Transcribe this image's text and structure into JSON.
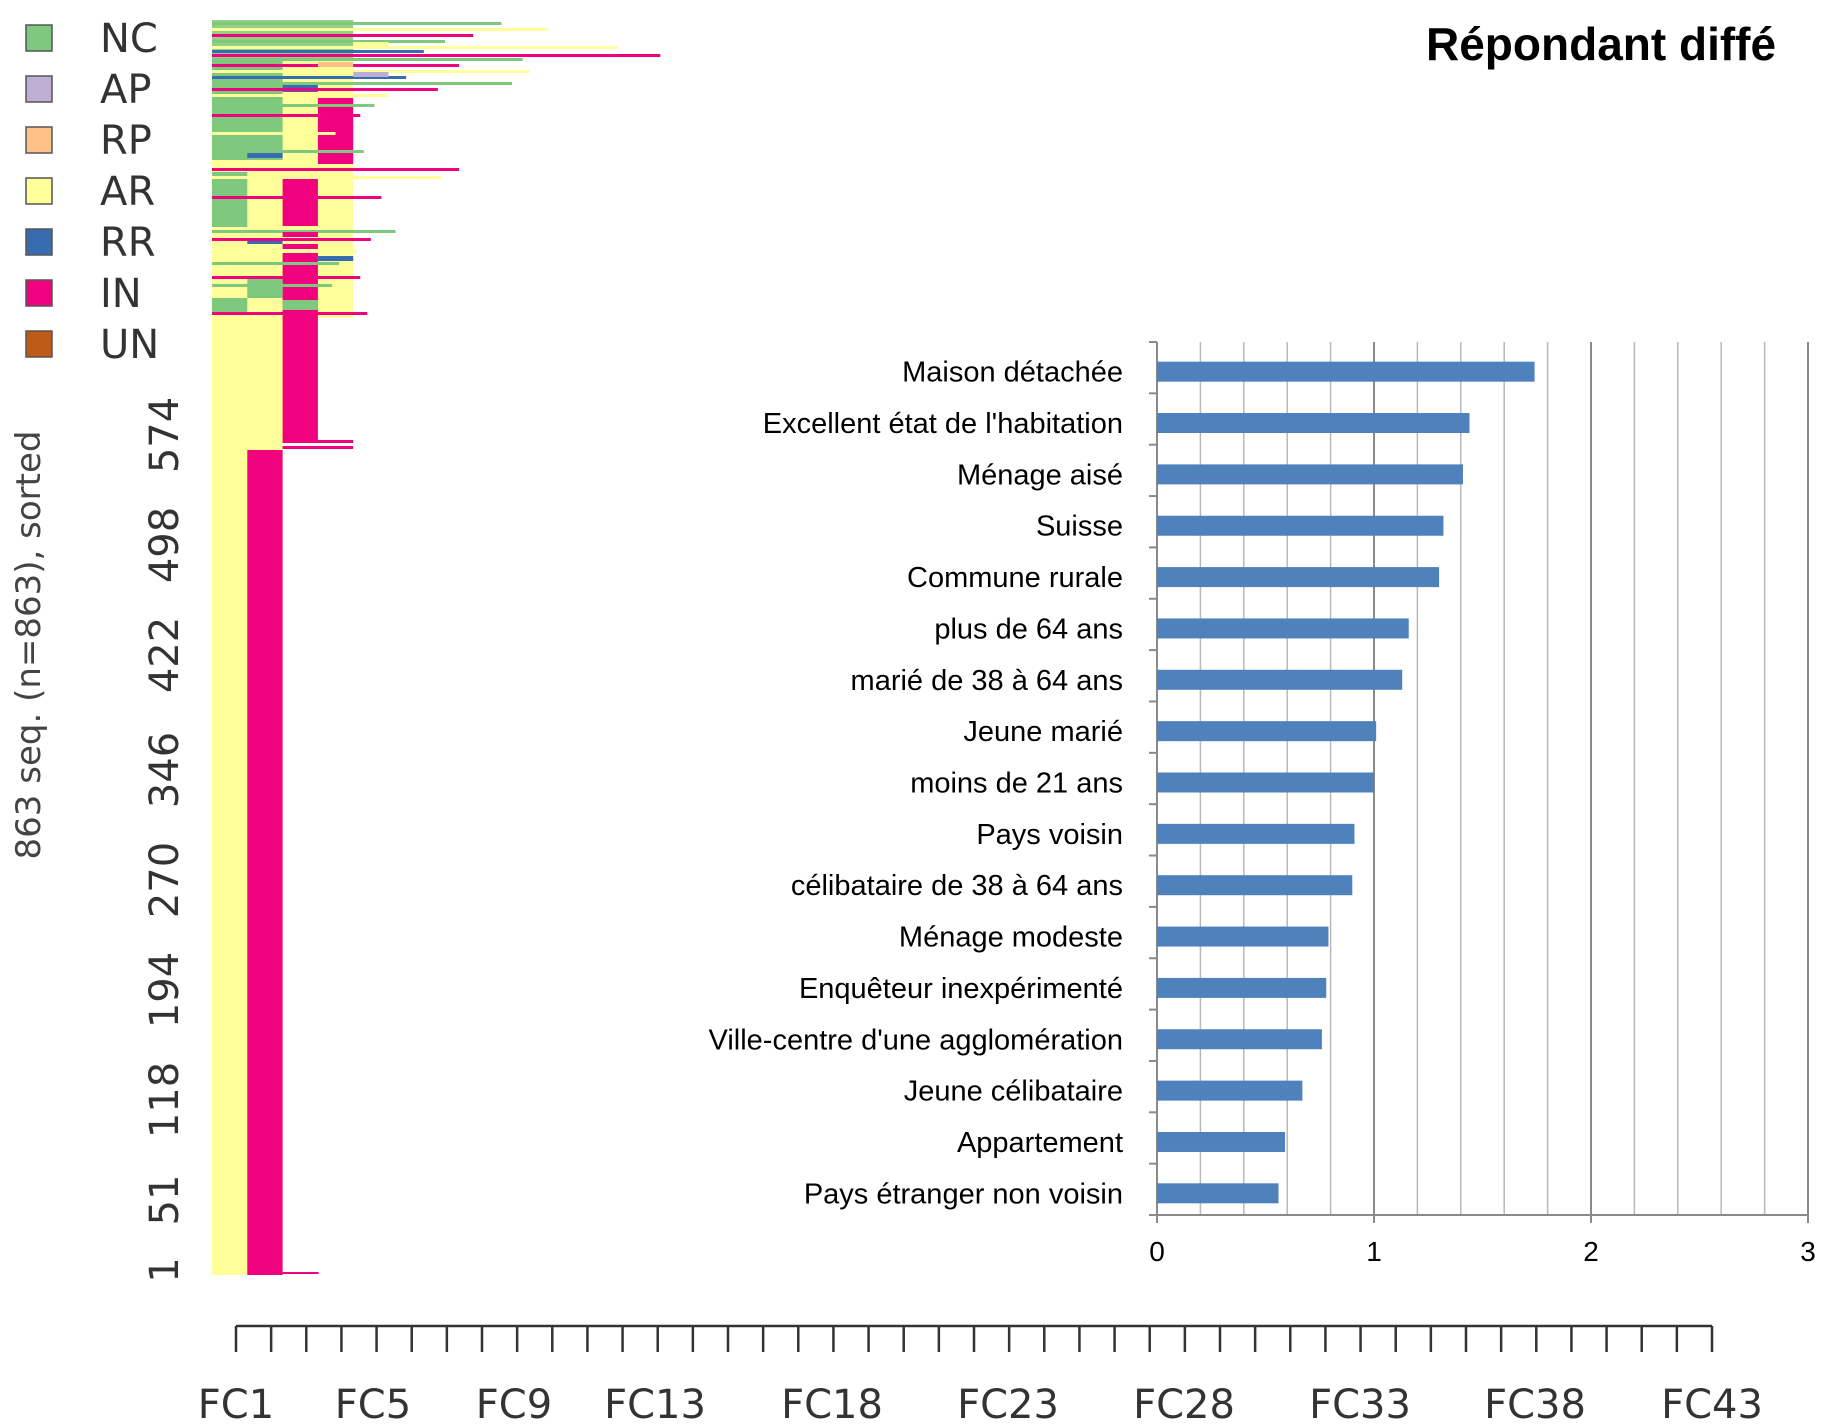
{
  "chart_data": [
    {
      "type": "heatmap",
      "legend": [
        {
          "label": "NC",
          "color": "#7fc97f"
        },
        {
          "label": "AP",
          "color": "#beaed4"
        },
        {
          "label": "RP",
          "color": "#fdc086"
        },
        {
          "label": "AR",
          "color": "#ffff99"
        },
        {
          "label": "RR",
          "color": "#386cb0"
        },
        {
          "label": "IN",
          "color": "#f0027f"
        },
        {
          "label": "UN",
          "color": "#bf5b17"
        }
      ],
      "ylabel": "863 seq. (n=863), sorted",
      "y_ticks": [
        "1",
        "51",
        "118",
        "194",
        "270",
        "346",
        "422",
        "498",
        "574"
      ],
      "x_ticks": [
        "FC1",
        "FC5",
        "FC9",
        "FC13",
        "FC18",
        "FC23",
        "FC28",
        "FC33",
        "FC38",
        "FC43"
      ]
    },
    {
      "type": "bar",
      "orientation": "horizontal",
      "title": "Répondant diffé",
      "categories": [
        "Maison détachée",
        "Excellent état de l'habitation",
        "Ménage aisé",
        "Suisse",
        "Commune rurale",
        "plus de 64 ans",
        "marié de 38 à 64 ans",
        "Jeune marié",
        "moins de 21 ans",
        "Pays voisin",
        "célibataire de 38 à 64 ans",
        "Ménage modeste",
        "Enquêteur inexpérimenté",
        "Ville-centre d'une agglomération",
        "Jeune célibataire",
        "Appartement",
        "Pays étranger non voisin"
      ],
      "values": [
        1.74,
        1.44,
        1.41,
        1.32,
        1.3,
        1.16,
        1.13,
        1.01,
        1.0,
        0.91,
        0.9,
        0.79,
        0.78,
        0.76,
        0.67,
        0.59,
        0.56
      ],
      "xlim": [
        0,
        3
      ],
      "x_ticks": [
        "0",
        "1",
        "2",
        "3"
      ],
      "color": "#4f81bd",
      "grid": true
    }
  ]
}
